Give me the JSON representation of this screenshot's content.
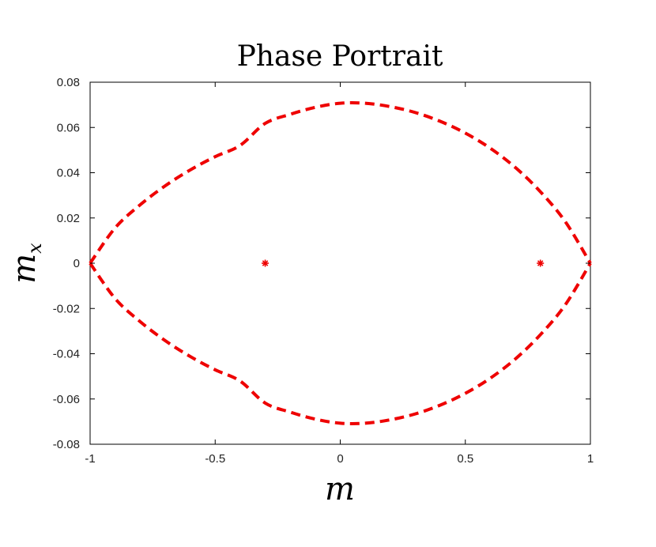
{
  "chart_data": {
    "type": "line",
    "title": "Phase Portrait",
    "xlabel": "m",
    "ylabel_main": "m",
    "ylabel_sub": "x",
    "xlim": [
      -1,
      1
    ],
    "ylim": [
      -0.08,
      0.08
    ],
    "x_ticks": [
      -1,
      -0.5,
      0,
      0.5,
      1
    ],
    "x_tick_labels": [
      "-1",
      "-0.5",
      "0",
      "0.5",
      "1"
    ],
    "y_ticks": [
      0.08,
      0.06,
      0.04,
      0.02,
      0,
      -0.02,
      -0.04,
      -0.06,
      -0.08
    ],
    "y_tick_labels": [
      "0.08",
      "0.06",
      "0.04",
      "0.02",
      "0",
      "-0.02",
      "-0.04",
      "-0.06",
      "-0.08"
    ],
    "grid": false,
    "series": [
      {
        "style": "dashed",
        "color": "#ee0000",
        "x": [
          -1,
          -0.9,
          -0.8,
          -0.7,
          -0.6,
          -0.5,
          -0.4,
          -0.3,
          -0.2,
          -0.1,
          0,
          0.1,
          0.2,
          0.3,
          0.4,
          0.5,
          0.6,
          0.7,
          0.8,
          0.9,
          1
        ],
        "y": [
          0,
          0.0156,
          0.0258,
          0.0342,
          0.0412,
          0.0471,
          0.0521,
          0.0618,
          0.0658,
          0.0689,
          0.0707,
          0.0707,
          0.0692,
          0.0666,
          0.0627,
          0.0575,
          0.0508,
          0.0423,
          0.0316,
          0.0183,
          0
        ]
      },
      {
        "style": "dashed",
        "color": "#ee0000",
        "x": [
          -1,
          -0.9,
          -0.8,
          -0.7,
          -0.6,
          -0.5,
          -0.4,
          -0.3,
          -0.2,
          -0.1,
          0,
          0.1,
          0.2,
          0.3,
          0.4,
          0.5,
          0.6,
          0.7,
          0.8,
          0.9,
          1
        ],
        "y": [
          0,
          -0.0156,
          -0.0258,
          -0.0342,
          -0.0412,
          -0.0471,
          -0.0521,
          -0.0618,
          -0.0658,
          -0.0689,
          -0.0707,
          -0.0707,
          -0.0692,
          -0.0666,
          -0.0627,
          -0.0575,
          -0.0508,
          -0.0423,
          -0.0316,
          -0.0183,
          0
        ]
      }
    ],
    "points": [
      {
        "x": -0.3,
        "y": 0,
        "marker": "asterisk",
        "color": "#ee0000"
      },
      {
        "x": 0.8,
        "y": 0,
        "marker": "asterisk",
        "color": "#ee0000"
      }
    ]
  }
}
